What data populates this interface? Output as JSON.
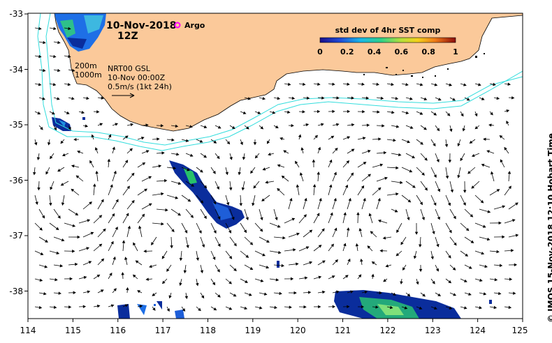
{
  "map": {
    "date_label": "10-Nov-2018",
    "hour_label": "12Z",
    "argo_label": "Argo",
    "colorbar_title": "std dev of 4hr SST comp",
    "colorbar_ticks": [
      "0",
      "0.2",
      "0.4",
      "0.6",
      "0.8",
      "1"
    ],
    "contour_labels": [
      "200m",
      "1000m"
    ],
    "product_label": "NRT00 GSL",
    "product_time": "10-Nov 00:00Z",
    "vector_scale_label": "0.5m/s (1kt 24h)",
    "x_ticks": [
      "114",
      "115",
      "116",
      "117",
      "118",
      "119",
      "120",
      "121",
      "122",
      "123",
      "124",
      "125"
    ],
    "y_ticks": [
      "-33",
      "-34",
      "-35",
      "-36",
      "-37",
      "-38"
    ],
    "credit": "© IMOS 15-Nov-2018 12:10 Hobart Time",
    "colors": {
      "land": "#fbc99a",
      "contour": "#33dddd",
      "argo": "#ff00ff",
      "sst_low": "#0a2d9c",
      "sst_mid": "#27c06a"
    },
    "longitude_range": [
      114,
      125
    ],
    "latitude_range": [
      -38.5,
      -33
    ]
  }
}
